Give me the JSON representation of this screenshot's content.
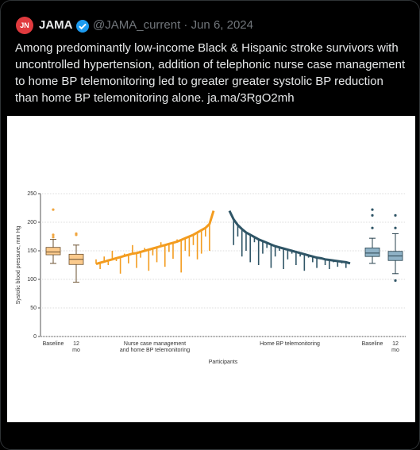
{
  "tweet": {
    "avatar_text": "JN",
    "author": "JAMA",
    "meta": "@JAMA_current · Jun 6, 2024",
    "text": "Among predominantly low-income Black & Hispanic stroke survivors with uncontrolled hypertension, addition of telephonic nurse case management to home BP telemonitoring led to greater greater systolic BP reduction than home BP telemonitoring alone. ja.ma/3RgO2mh"
  },
  "chart_data": {
    "type": "participant-plot",
    "ylabel": "Systolic blood pressure, mm Hg",
    "xlabel": "Participants",
    "ylim": [
      0,
      250
    ],
    "yticks": [
      0,
      50,
      100,
      150,
      200,
      250
    ],
    "boxes": [
      {
        "label": [
          "Baseline"
        ],
        "color": "#fbca8c",
        "stroke": "#6b5030",
        "min": 128,
        "q1": 143,
        "median": 148,
        "q3": 156,
        "max": 170,
        "outliers": [
          174,
          178,
          222
        ]
      },
      {
        "label": [
          "12",
          "mo"
        ],
        "color": "#fbca8c",
        "stroke": "#6b5030",
        "min": 95,
        "q1": 126,
        "median": 135,
        "q3": 144,
        "max": 160,
        "outliers": [
          178,
          180
        ]
      },
      {
        "label": [
          "Baseline"
        ],
        "color": "#8fb2c6",
        "stroke": "#27414d",
        "min": 128,
        "q1": 140,
        "median": 146,
        "q3": 155,
        "max": 172,
        "outliers": [
          190,
          212,
          222
        ]
      },
      {
        "label": [
          "12",
          "mo"
        ],
        "color": "#8fb2c6",
        "stroke": "#27414d",
        "min": 110,
        "q1": 133,
        "median": 141,
        "q3": 149,
        "max": 180,
        "outliers": [
          98,
          190,
          212
        ]
      }
    ],
    "arms": [
      {
        "label": [
          "Nurse case management",
          "and home BP telemonitoring"
        ],
        "color": "#f39c1f",
        "baseline": [
          127,
          129,
          131,
          133,
          135,
          137,
          139,
          141,
          143,
          145,
          146,
          148,
          150,
          152,
          154,
          156,
          158,
          160,
          162,
          164,
          166,
          169,
          172,
          175,
          178,
          182,
          186,
          190,
          197,
          220
        ],
        "followup": [
          135,
          118,
          140,
          125,
          150,
          132,
          110,
          145,
          128,
          160,
          120,
          138,
          155,
          115,
          142,
          130,
          165,
          122,
          148,
          136,
          170,
          112,
          150,
          140,
          160,
          135,
          145,
          175,
          150,
          220
        ]
      },
      {
        "label": [
          "Home BP telemonitoring"
        ],
        "color": "#2f5566",
        "baseline": [
          220,
          205,
          195,
          188,
          182,
          178,
          174,
          170,
          167,
          164,
          161,
          158,
          156,
          154,
          152,
          150,
          148,
          146,
          144,
          142,
          140,
          138,
          137,
          135,
          134,
          133,
          132,
          131,
          130,
          128
        ],
        "followup": [
          220,
          160,
          175,
          140,
          150,
          130,
          165,
          125,
          145,
          155,
          120,
          140,
          150,
          118,
          135,
          145,
          125,
          140,
          115,
          138,
          130,
          120,
          135,
          125,
          118,
          130,
          122,
          128,
          120,
          128
        ]
      }
    ]
  }
}
